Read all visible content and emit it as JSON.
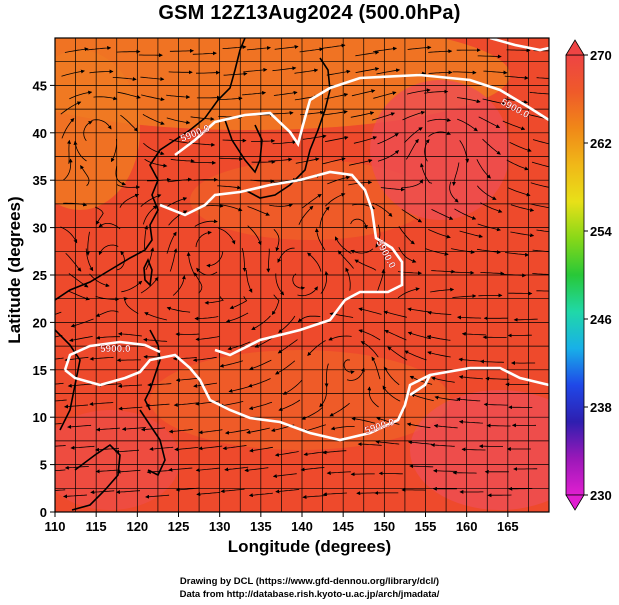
{
  "title": "GSM 12Z13Aug2024 (500.0hPa)",
  "xlabel": "Longitude (degrees)",
  "ylabel": "Latitude  (degrees)",
  "credits": [
    "Drawing by DCL (https://www.gfd-dennou.org/library/dcl/)",
    "Data from http://database.rish.kyoto-u.ac.jp/arch/jmadata/"
  ],
  "x_ticks": [
    "110",
    "115",
    "120",
    "125",
    "130",
    "135",
    "140",
    "145",
    "150",
    "155",
    "160",
    "165"
  ],
  "y_ticks": [
    "0",
    "5",
    "10",
    "15",
    "20",
    "25",
    "30",
    "35",
    "40",
    "45"
  ],
  "colorbar": {
    "labels": [
      "230",
      "238",
      "246",
      "254",
      "262",
      "270"
    ],
    "min": 230,
    "max": 270,
    "colors_bottom_to_top": [
      "#e01fd0",
      "#9a18b8",
      "#2e1fb0",
      "#1f48e8",
      "#18b0e8",
      "#20d8a8",
      "#28c838",
      "#88d818",
      "#e8e018",
      "#f0b818",
      "#f08818",
      "#ef5a2a",
      "#ee4444"
    ]
  },
  "map": {
    "lon_range": [
      110,
      170
    ],
    "lat_range": [
      0,
      50
    ],
    "grid_step_deg": 2.5,
    "field_colors": {
      "base": "#ee4a2c",
      "warm": "#ef5a2a",
      "orange": "#f07a22",
      "pink": "#ee5050"
    },
    "contour": {
      "value_label": "5900.0",
      "labels": [
        "5900.0",
        "5900.0",
        "5900.0",
        "5900.0",
        "5900.0"
      ],
      "color": "#ffffff"
    }
  }
}
